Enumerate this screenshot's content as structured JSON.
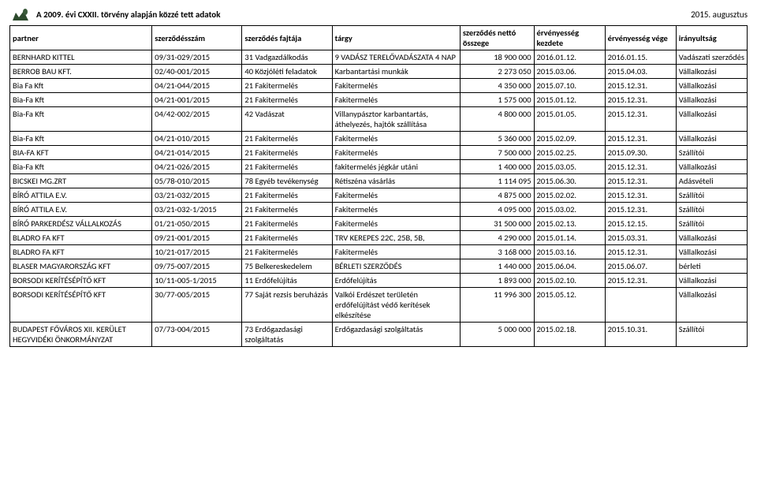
{
  "header": {
    "title": "A 2009. évi CXXII. törvény alapján közzé tett adatok",
    "date": "2015. augusztus"
  },
  "columns": {
    "partner": "partner",
    "szerzodesszam": "szerződésszám",
    "szerzodes_fajtaja": "szerződés fajtája",
    "targy": "tárgy",
    "netto": "szerződés nettó összege",
    "kezdete": "érvényesség kezdete",
    "vege": "érvényesség vége",
    "iranyultsag": "irányultság"
  },
  "rows": [
    {
      "partner": "BERNHARD KITTEL",
      "szam": "09/31-029/2015",
      "fajta": "31 Vadgazdálkodás",
      "targy": "9 VADÁSZ TERELŐVADÁSZATA 4 NAP",
      "netto": "18 900 000",
      "kezd": "2016.01.12.",
      "vege": "2016.01.15.",
      "irany": "Vadászati szerződés"
    },
    {
      "partner": "BERROB BAU KFT.",
      "szam": "02/40-001/2015",
      "fajta": "40 Közjóléti feladatok",
      "targy": "Karbantartási munkák",
      "netto": "2 273 050",
      "kezd": "2015.03.06.",
      "vege": "2015.04.03.",
      "irany": "Vállalkozási"
    },
    {
      "partner": "Bia Fa Kft",
      "szam": "04/21-044/2015",
      "fajta": "21 Fakitermelés",
      "targy": "Fakitermelés",
      "netto": "4 350 000",
      "kezd": "2015.07.10.",
      "vege": "2015.12.31.",
      "irany": "Vállalkozási"
    },
    {
      "partner": "Bia-Fa Kft",
      "szam": "04/21-001/2015",
      "fajta": "21 Fakitermelés",
      "targy": "Fakitermelés",
      "netto": "1 575 000",
      "kezd": "2015.01.12.",
      "vege": "2015.12.31.",
      "irany": "Vállalkozási"
    },
    {
      "partner": "Bia-Fa Kft",
      "szam": "04/42-002/2015",
      "fajta": "42 Vadászat",
      "targy": "Villanypásztor karbantartás, áthelyezés, hajtók szállítása",
      "netto": "4 800 000",
      "kezd": "2015.01.05.",
      "vege": "2015.12.31.",
      "irany": "Vállalkozási"
    },
    {
      "partner": "Bia-Fa Kft",
      "szam": "04/21-010/2015",
      "fajta": "21 Fakitermelés",
      "targy": "Fakitermelés",
      "netto": "5 360 000",
      "kezd": "2015.02.09.",
      "vege": "2015.12.31.",
      "irany": "Vállalkozási"
    },
    {
      "partner": "BIA-FA KFT",
      "szam": "04/21-014/2015",
      "fajta": "21 Fakitermelés",
      "targy": "Fakitermelés",
      "netto": "7 500 000",
      "kezd": "2015.02.25.",
      "vege": "2015.09.30.",
      "irany": "Szállítói"
    },
    {
      "partner": "Bia-Fa Kft",
      "szam": "04/21-026/2015",
      "fajta": "21 Fakitermelés",
      "targy": "fakitermelés jégkár utáni",
      "netto": "1 400 000",
      "kezd": "2015.03.05.",
      "vege": "2015.12.31.",
      "irany": "Vállalkozási"
    },
    {
      "partner": "BICSKEI MG.ZRT",
      "szam": "05/78-010/2015",
      "fajta": "78 Egyéb tevékenység",
      "targy": "Rétiszéna vásárlás",
      "netto": "1 114 095",
      "kezd": "2015.06.30.",
      "vege": "2015.12.31.",
      "irany": "Adásvételi"
    },
    {
      "partner": "BÍRÓ ATTILA E.V.",
      "szam": "03/21-032/2015",
      "fajta": "21 Fakitermelés",
      "targy": "Fakitermelés",
      "netto": "4 875 000",
      "kezd": "2015.02.02.",
      "vege": "2015.12.31.",
      "irany": "Szállítói"
    },
    {
      "partner": "BÍRÓ ATTILA E.V.",
      "szam": "03/21-032-1/2015",
      "fajta": "21 Fakitermelés",
      "targy": "Fakitermelés",
      "netto": "4 095 000",
      "kezd": "2015.03.02.",
      "vege": "2015.12.31.",
      "irany": "Szállítói"
    },
    {
      "partner": "BÍRÓ PARKERDÉSZ VÁLLALKOZÁS",
      "szam": "01/21-050/2015",
      "fajta": "21 Fakitermelés",
      "targy": "Fakitermelés",
      "netto": "31 500 000",
      "kezd": "2015.02.13.",
      "vege": "2015.12.15.",
      "irany": "Szállítói"
    },
    {
      "partner": "BLADRO FA KFT",
      "szam": "09/21-001/2015",
      "fajta": "21 Fakitermelés",
      "targy": "TRV KEREPES 22C, 25B, 5B,",
      "netto": "4 290 000",
      "kezd": "2015.01.14.",
      "vege": "2015.03.31.",
      "irany": "Vállalkozási"
    },
    {
      "partner": "BLADRO FA KFT",
      "szam": "10/21-017/2015",
      "fajta": "21 Fakitermelés",
      "targy": "Fakitermelés",
      "netto": "3 168 000",
      "kezd": "2015.03.16.",
      "vege": "2015.12.31.",
      "irany": "Vállalkozási"
    },
    {
      "partner": "BLASER MAGYARORSZÁG KFT",
      "szam": "09/75-007/2015",
      "fajta": "75 Belkereskedelem",
      "targy": "BÉRLETI SZERZŐDÉS",
      "netto": "1 440 000",
      "kezd": "2015.06.04.",
      "vege": "2015.06.07.",
      "irany": "bérleti"
    },
    {
      "partner": "BORSODI KERÍTÉSÉPÍTŐ KFT",
      "szam": "10/11-005-1/2015",
      "fajta": "11 Erdőfelújítás",
      "targy": "Erdőfelújítás",
      "netto": "1 893 000",
      "kezd": "2015.02.10.",
      "vege": "2015.12.31.",
      "irany": "Vállalkozási"
    },
    {
      "partner": "BORSODI KERÍTÉSÉPÍTŐ KFT",
      "szam": "30/77-005/2015",
      "fajta": "77 Saját rezsis beruházás",
      "targy": "Valkói Erdészet területén erdőfelújítást védő kerítések elkészítése",
      "netto": "11 996 300",
      "kezd": "2015.05.12.",
      "vege": "",
      "irany": "Vállalkozási"
    },
    {
      "partner": "BUDAPEST FŐVÁROS XII. KERÜLET HEGYVIDÉKI ÖNKORMÁNYZAT",
      "szam": "07/73-004/2015",
      "fajta": "73 Erdőgazdasági szolgáltatás",
      "targy": "Erdőgazdasági szolgáltatás",
      "netto": "5 000 000",
      "kezd": "2015.02.18.",
      "vege": "2015.10.31.",
      "irany": "Szállítói"
    }
  ],
  "style": {
    "border_color": "#000000",
    "background": "#ffffff",
    "font_family": "Calibri, Arial, sans-serif",
    "header_fontsize": 11,
    "cell_fontsize": 10.5
  }
}
